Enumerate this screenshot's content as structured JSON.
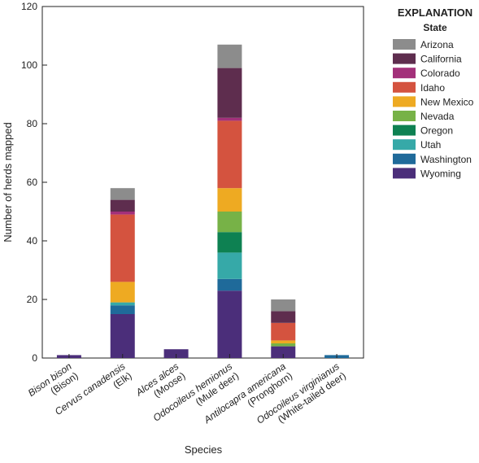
{
  "chart_data": {
    "type": "stacked-bar",
    "x_label": "Species",
    "y_label": "Number of herds mapped",
    "legend_title": "EXPLANATION",
    "legend_subtitle": "State",
    "legend_position": "right",
    "categories": [
      [
        "Bison bison",
        "(Bison)"
      ],
      [
        "Cervus canadensis",
        "(Elk)"
      ],
      [
        "Alces alces",
        "(Moose)"
      ],
      [
        "Odocoileus hemionus",
        "(Mule deer)"
      ],
      [
        "Antilocapra americana",
        "(Pronghorn)"
      ],
      [
        "Odocoileus virginianus",
        "(White-tailed deer)"
      ]
    ],
    "ylim": [
      0,
      120
    ],
    "yticks": [
      0,
      20,
      40,
      60,
      80,
      100,
      120
    ],
    "series": [
      {
        "name": "Wyoming",
        "color": "#4b2e7a",
        "values": [
          1,
          15,
          3,
          23,
          4,
          0
        ]
      },
      {
        "name": "Washington",
        "color": "#1f6a9a",
        "values": [
          0,
          3,
          0,
          4,
          0,
          1
        ]
      },
      {
        "name": "Utah",
        "color": "#36a9a8",
        "values": [
          0,
          1,
          0,
          9,
          0,
          0
        ]
      },
      {
        "name": "Oregon",
        "color": "#0e8152",
        "values": [
          0,
          0,
          0,
          7,
          0,
          0
        ]
      },
      {
        "name": "Nevada",
        "color": "#77b247",
        "values": [
          0,
          0,
          0,
          7,
          1,
          0
        ]
      },
      {
        "name": "New Mexico",
        "color": "#eeaa22",
        "values": [
          0,
          7,
          0,
          8,
          1,
          0
        ]
      },
      {
        "name": "Idaho",
        "color": "#d4533f",
        "values": [
          0,
          23,
          0,
          23,
          6,
          0
        ]
      },
      {
        "name": "Colorado",
        "color": "#a3307a",
        "values": [
          0,
          1,
          0,
          1,
          0,
          0
        ]
      },
      {
        "name": "California",
        "color": "#5e2d4e",
        "values": [
          0,
          4,
          0,
          17,
          4,
          0
        ]
      },
      {
        "name": "Arizona",
        "color": "#8c8c8c",
        "values": [
          0,
          4,
          0,
          8,
          4,
          0
        ]
      }
    ]
  }
}
